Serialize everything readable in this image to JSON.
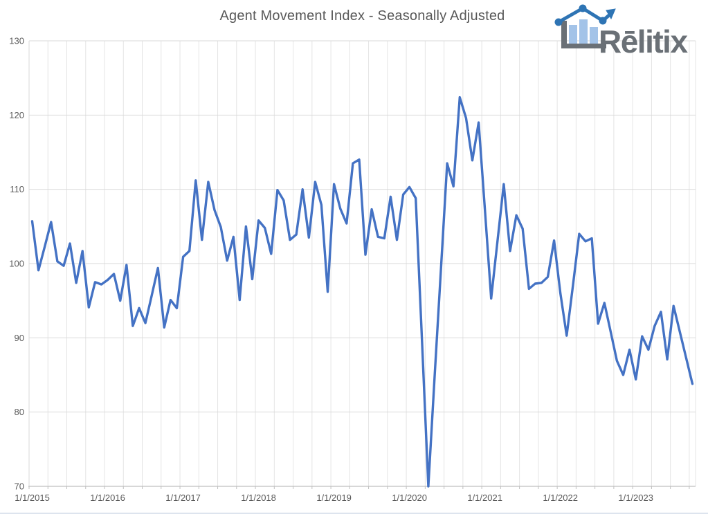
{
  "title": "Agent Movement Index - Seasonally Adjusted",
  "logo": {
    "text": "Rēlitix",
    "gray": "#6a7076",
    "blue": "#2e74b4",
    "light_blue": "#a3c3e8"
  },
  "chart_data": {
    "type": "line",
    "title": "Agent Movement Index - Seasonally Adjusted",
    "series_name": "Agent Movement Index (seasonally adjusted)",
    "x_start": "1/1/2015",
    "x_freq": "monthly",
    "x_axis_tick_labels": [
      "1/1/2015",
      "1/1/2016",
      "1/1/2017",
      "1/1/2018",
      "1/1/2019",
      "1/1/2020",
      "1/1/2021",
      "1/1/2022",
      "1/1/2023"
    ],
    "y_ticks": [
      70,
      80,
      90,
      100,
      110,
      120,
      130
    ],
    "ylim": [
      70,
      130
    ],
    "grid": {
      "horizontal": "major every 10",
      "vertical": "quarterly"
    },
    "legend": "none",
    "line_color": "#4472C4",
    "gridline_color": "#d9d9d9",
    "minor_gridline_color": "#e4e4e4",
    "axis_color": "#bfbfbf",
    "tick_label_color": "#595959",
    "values": [
      105.7,
      99.1,
      102.3,
      105.6,
      100.3,
      99.7,
      102.7,
      97.4,
      101.7,
      94.1,
      97.5,
      97.2,
      97.8,
      98.6,
      95.0,
      99.8,
      91.6,
      94.0,
      92.0,
      95.7,
      99.4,
      91.4,
      95.1,
      94.0,
      100.9,
      101.7,
      111.2,
      103.2,
      111.0,
      107.2,
      104.9,
      100.4,
      103.6,
      95.1,
      105.0,
      97.9,
      105.8,
      104.8,
      101.3,
      109.9,
      108.5,
      103.2,
      103.9,
      110.0,
      103.5,
      111.0,
      107.9,
      96.2,
      110.7,
      107.4,
      105.4,
      113.5,
      114.0,
      101.2,
      107.3,
      103.6,
      103.4,
      109.0,
      103.2,
      109.3,
      110.3,
      108.8,
      89.5,
      70.0,
      84.8,
      99.2,
      113.5,
      110.4,
      122.4,
      119.6,
      113.9,
      119.0,
      107.2,
      95.3,
      103.0,
      110.7,
      101.7,
      106.5,
      104.7,
      96.6,
      97.3,
      97.4,
      98.2,
      103.1,
      96.0,
      90.3,
      97.0,
      104.0,
      103.0,
      103.4,
      91.9,
      94.7,
      90.8,
      86.9,
      85.0,
      88.4,
      84.4,
      90.2,
      88.4,
      91.6,
      93.5,
      87.1,
      94.3,
      90.8,
      87.3,
      83.8
    ]
  }
}
